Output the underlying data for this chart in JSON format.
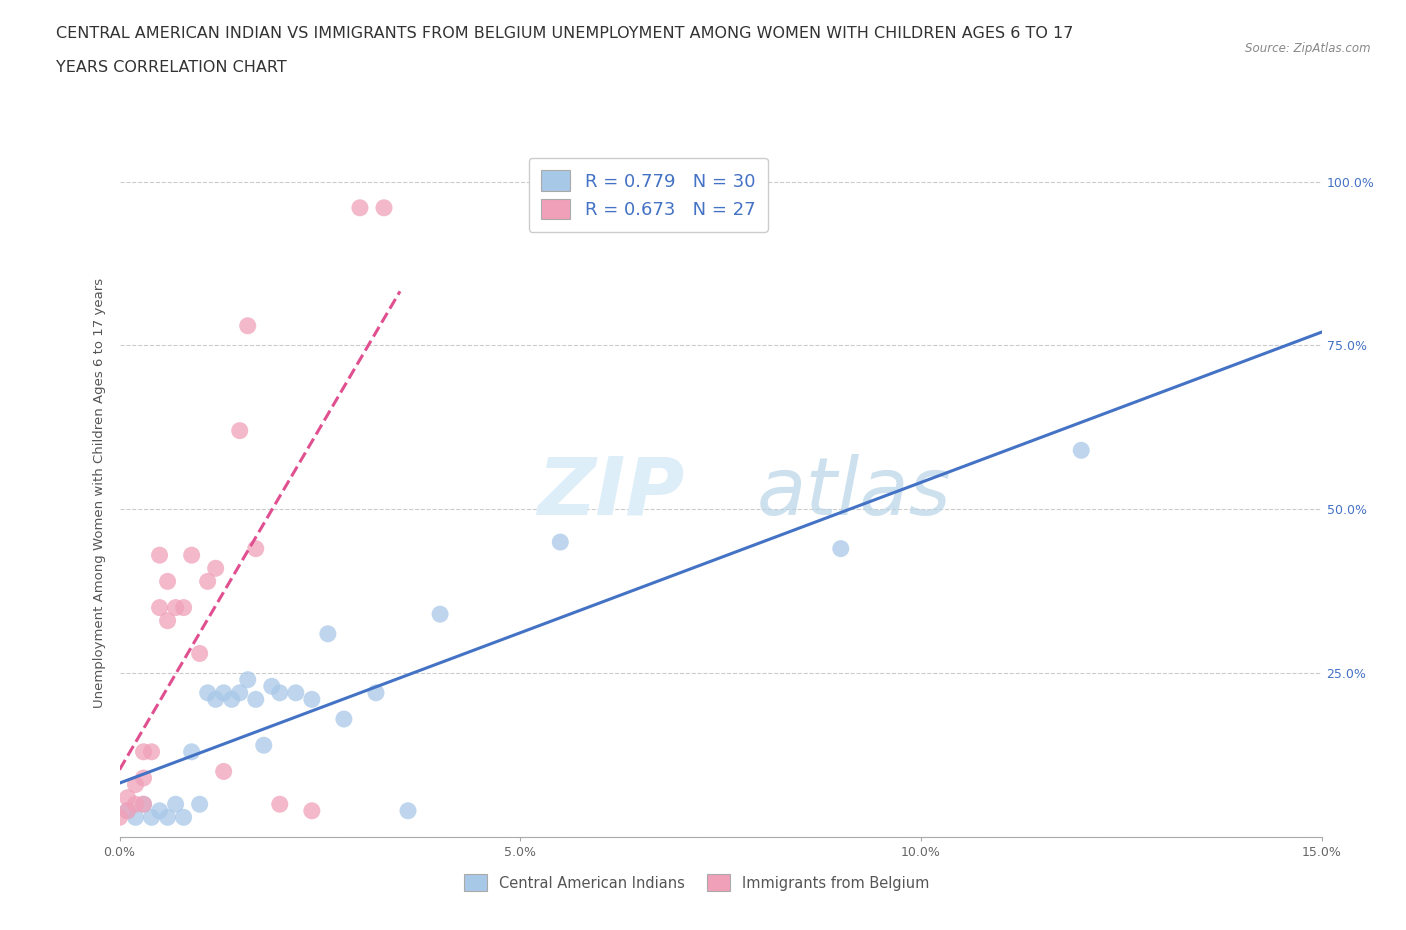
{
  "title_line1": "CENTRAL AMERICAN INDIAN VS IMMIGRANTS FROM BELGIUM UNEMPLOYMENT AMONG WOMEN WITH CHILDREN AGES 6 TO 17",
  "title_line2": "YEARS CORRELATION CHART",
  "source": "Source: ZipAtlas.com",
  "ylabel": "Unemployment Among Women with Children Ages 6 to 17 years",
  "xlim": [
    0.0,
    0.15
  ],
  "ylim": [
    0.0,
    1.05
  ],
  "xticks": [
    0.0,
    0.05,
    0.1,
    0.15
  ],
  "xtick_labels": [
    "0.0%",
    "5.0%",
    "10.0%",
    "15.0%"
  ],
  "yticks": [
    0.0,
    0.25,
    0.5,
    0.75,
    1.0
  ],
  "ytick_right_labels": [
    "",
    "25.0%",
    "50.0%",
    "75.0%",
    "100.0%"
  ],
  "blue_R": "0.779",
  "blue_N": "30",
  "pink_R": "0.673",
  "pink_N": "27",
  "blue_color": "#a8c8e8",
  "pink_color": "#f0a0b8",
  "blue_line_color": "#4472c4",
  "pink_line_color": "#e05090",
  "legend_label_blue": "Central American Indians",
  "legend_label_pink": "Immigrants from Belgium",
  "watermark_zip": "ZIP",
  "watermark_atlas": "atlas",
  "blue_points_x": [
    0.001,
    0.002,
    0.003,
    0.004,
    0.005,
    0.006,
    0.007,
    0.008,
    0.009,
    0.01,
    0.011,
    0.012,
    0.013,
    0.014,
    0.015,
    0.016,
    0.017,
    0.018,
    0.019,
    0.02,
    0.022,
    0.024,
    0.026,
    0.028,
    0.032,
    0.036,
    0.04,
    0.055,
    0.09,
    0.12
  ],
  "blue_points_y": [
    0.04,
    0.03,
    0.05,
    0.03,
    0.04,
    0.03,
    0.05,
    0.03,
    0.13,
    0.05,
    0.22,
    0.21,
    0.22,
    0.21,
    0.22,
    0.24,
    0.21,
    0.14,
    0.23,
    0.22,
    0.22,
    0.21,
    0.31,
    0.18,
    0.22,
    0.04,
    0.34,
    0.45,
    0.44,
    0.59
  ],
  "pink_points_x": [
    0.0,
    0.001,
    0.001,
    0.002,
    0.002,
    0.003,
    0.003,
    0.003,
    0.004,
    0.005,
    0.005,
    0.006,
    0.006,
    0.007,
    0.008,
    0.009,
    0.01,
    0.011,
    0.012,
    0.013,
    0.015,
    0.016,
    0.017,
    0.02,
    0.024,
    0.03,
    0.033
  ],
  "pink_points_y": [
    0.03,
    0.04,
    0.06,
    0.05,
    0.08,
    0.05,
    0.09,
    0.13,
    0.13,
    0.35,
    0.43,
    0.33,
    0.39,
    0.35,
    0.35,
    0.43,
    0.28,
    0.39,
    0.41,
    0.1,
    0.62,
    0.78,
    0.44,
    0.05,
    0.04,
    0.96,
    0.96
  ],
  "background_color": "#ffffff",
  "grid_color": "#cccccc",
  "title_fontsize": 11.5,
  "axis_label_fontsize": 9.5,
  "tick_fontsize": 9,
  "right_ytick_color": "#4472c4",
  "pink_line_x_start": 0.0,
  "pink_line_x_end": 0.035,
  "blue_line_x_start": 0.0,
  "blue_line_x_end": 0.15
}
